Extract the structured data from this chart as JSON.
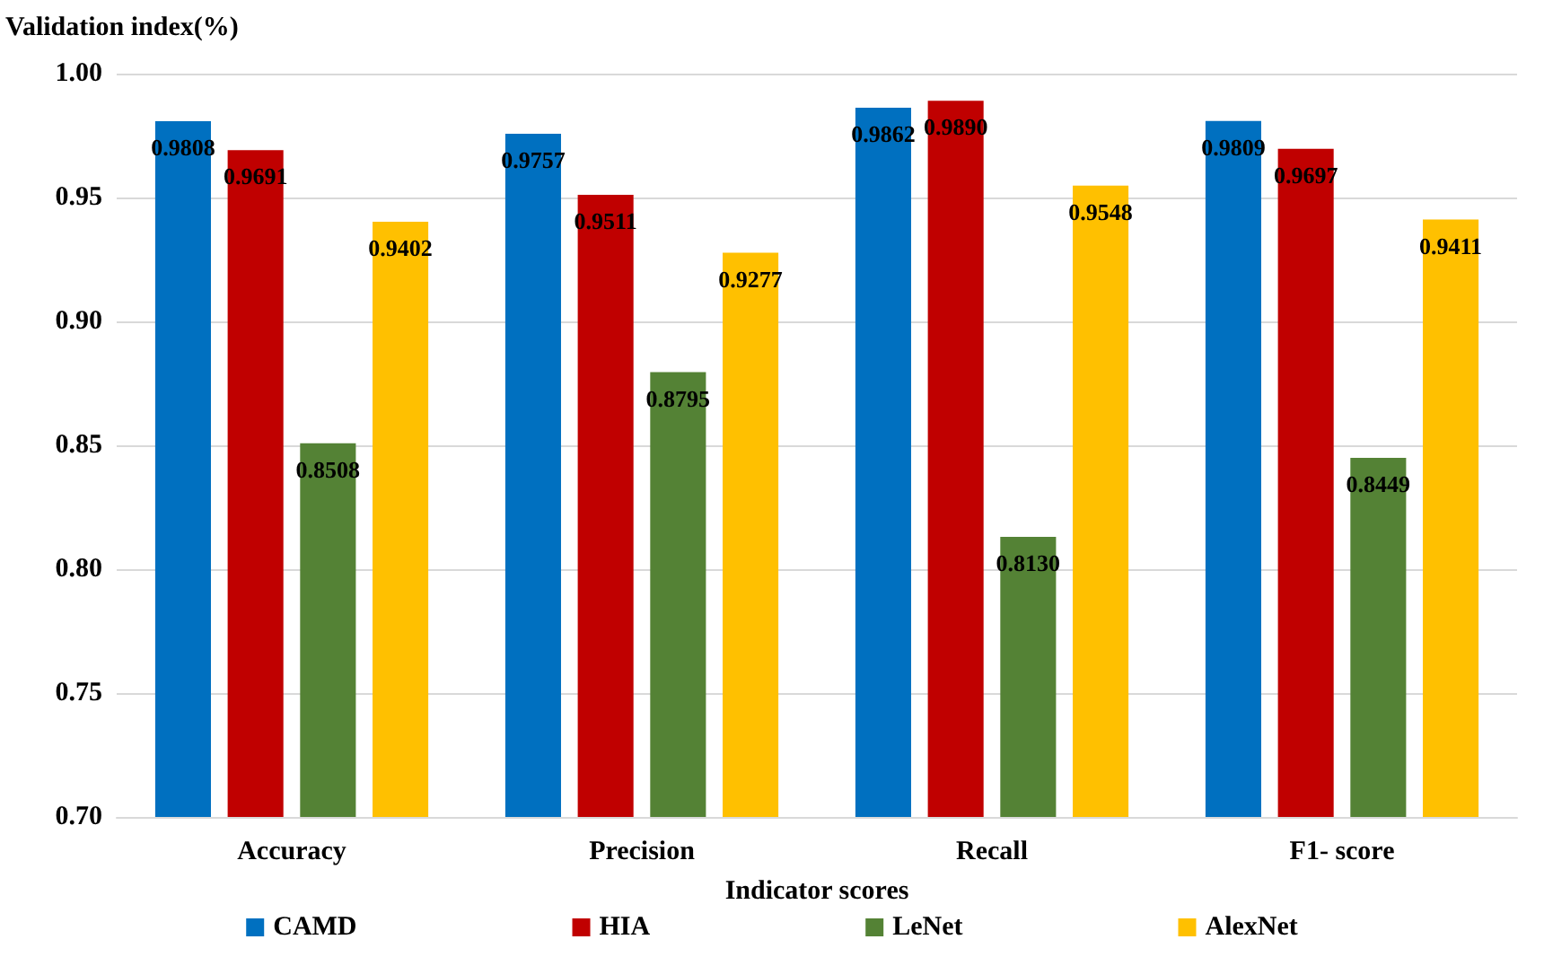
{
  "chart_data": {
    "type": "bar",
    "ylabel": "Validation index(%)",
    "xlabel": "Indicator scores",
    "categories": [
      "Accuracy",
      "Precision",
      "Recall",
      "F1- score"
    ],
    "series": [
      {
        "name": "CAMD",
        "color": "#0070c0",
        "values": [
          0.9808,
          0.9757,
          0.9862,
          0.9809
        ],
        "value_labels": [
          "0.9808",
          "0.9757",
          "0.9862",
          "0.9809"
        ]
      },
      {
        "name": "HIA",
        "color": "#c00000",
        "values": [
          0.9691,
          0.9511,
          0.989,
          0.9697
        ],
        "value_labels": [
          "0.9691",
          "0.9511",
          "0.9890",
          "0.9697"
        ]
      },
      {
        "name": "LeNet",
        "color": "#548235",
        "values": [
          0.8508,
          0.8795,
          0.813,
          0.8449
        ],
        "value_labels": [
          "0.8508",
          "0.8795",
          "0.8130",
          "0.8449"
        ]
      },
      {
        "name": "AlexNet",
        "color": "#ffc000",
        "values": [
          0.9402,
          0.9277,
          0.9548,
          0.9411
        ],
        "value_labels": [
          "0.9402",
          "0.9277",
          "0.9548",
          "0.9411"
        ]
      }
    ],
    "ylim": [
      0.7,
      1.0
    ],
    "yticks": [
      {
        "value": 0.7,
        "label": "0.70"
      },
      {
        "value": 0.75,
        "label": "0.75"
      },
      {
        "value": 0.8,
        "label": "0.80"
      },
      {
        "value": 0.85,
        "label": "0.85"
      },
      {
        "value": 0.9,
        "label": "0.90"
      },
      {
        "value": 0.95,
        "label": "0.95"
      },
      {
        "value": 1.0,
        "label": "1.00"
      }
    ],
    "grid": "y",
    "legend": "bottom"
  }
}
